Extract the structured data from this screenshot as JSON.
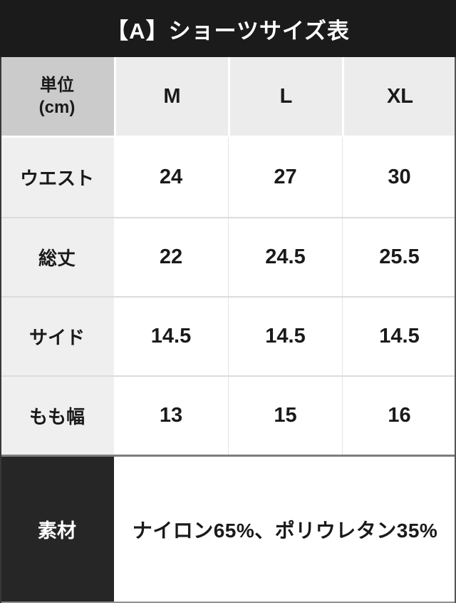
{
  "title": "【A】ショーツサイズ表",
  "table": {
    "unit_line1": "単位",
    "unit_line2": "(cm)",
    "sizes": [
      "M",
      "L",
      "XL"
    ],
    "rows": [
      {
        "label": "ウエスト",
        "values": [
          "24",
          "27",
          "30"
        ]
      },
      {
        "label": "総丈",
        "values": [
          "22",
          "24.5",
          "25.5"
        ]
      },
      {
        "label": "サイド",
        "values": [
          "14.5",
          "14.5",
          "14.5"
        ]
      },
      {
        "label": "もも幅",
        "values": [
          "13",
          "15",
          "16"
        ]
      }
    ]
  },
  "material": {
    "label": "素材",
    "value": "ナイロン65%、ポリウレタン35%"
  },
  "colors": {
    "title_bar_bg": "#1b1b1b",
    "title_text": "#ffffff",
    "header_unit_bg": "#cbcbcb",
    "header_size_bg": "#ececec",
    "row_label_bg": "#efefef",
    "value_bg": "#ffffff",
    "row_divider": "#dcdcdc",
    "heavy_divider": "#7d7d7d",
    "material_label_bg": "#262626",
    "body_text": "#1a1a1a"
  }
}
